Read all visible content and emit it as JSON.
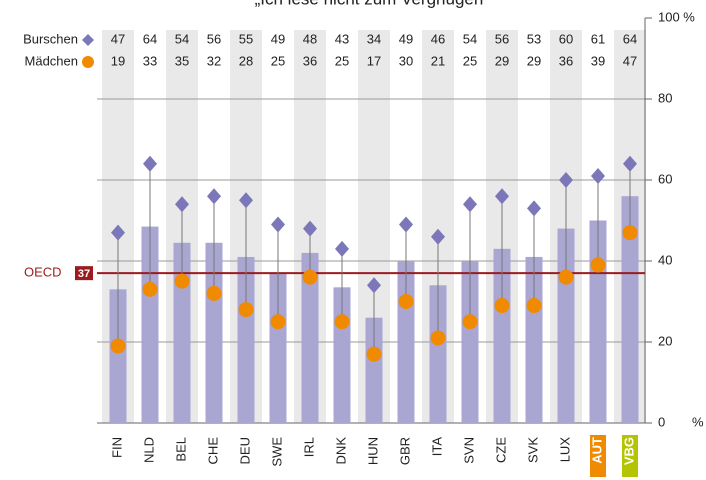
{
  "chart_data": {
    "type": "bar",
    "title": "„Ich lese nicht zum Vergnügen\"",
    "categories": [
      "FIN",
      "NLD",
      "BEL",
      "CHE",
      "DEU",
      "SWE",
      "IRL",
      "DNK",
      "HUN",
      "GBR",
      "ITA",
      "SVN",
      "CZE",
      "SVK",
      "LUX",
      "AUT",
      "VBG"
    ],
    "category_highlights": [
      null,
      null,
      null,
      null,
      null,
      null,
      null,
      null,
      null,
      null,
      null,
      null,
      null,
      null,
      null,
      "#f08a00",
      "#b5c400"
    ],
    "series": [
      {
        "color": "#a9a6d2",
        "values": [
          33,
          48.5,
          44.5,
          44.5,
          41,
          37,
          42,
          33.5,
          26,
          40,
          34,
          40,
          43,
          41,
          48,
          50,
          56
        ]
      },
      {
        "name": "Burschen",
        "color": "#7b77b8",
        "values": [
          47,
          64,
          54,
          56,
          55,
          49,
          48,
          43,
          34,
          49,
          46,
          54,
          56,
          53,
          60,
          61,
          64
        ]
      },
      {
        "name": "Mädchen",
        "color": "#f08a00",
        "values": [
          19,
          33,
          35,
          32,
          28,
          25,
          36,
          25,
          17,
          30,
          21,
          25,
          29,
          29,
          36,
          39,
          47
        ]
      }
    ],
    "reference": {
      "label": "OECD",
      "value": 37,
      "color": "#9b1b1e"
    },
    "ylim": [
      0,
      100
    ],
    "yticks": [
      0,
      20,
      40,
      60,
      80,
      {
        "value": 100,
        "label": "100 %"
      }
    ],
    "y_unit": "%",
    "grid": true,
    "column_shading": true
  }
}
